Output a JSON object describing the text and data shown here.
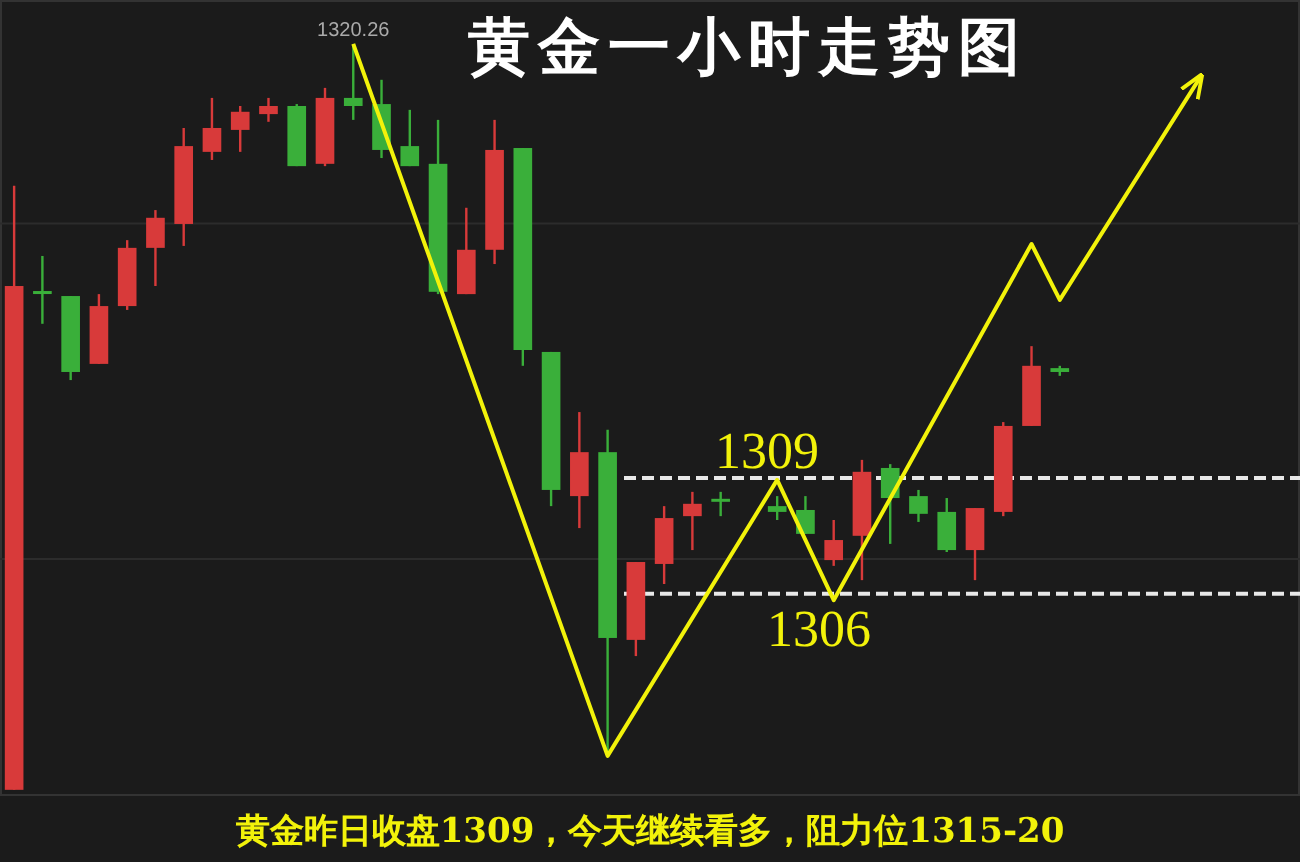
{
  "chart_data": {
    "type": "candlestick",
    "title": "黄金一小时走势图",
    "categories": [
      null,
      null,
      null,
      null,
      null,
      null,
      null,
      null,
      null,
      null,
      null,
      null,
      null,
      null,
      null,
      null,
      null,
      null,
      null,
      null,
      null,
      null,
      null,
      null,
      null,
      null,
      null,
      null,
      null,
      null,
      null,
      null,
      null,
      null,
      null,
      null,
      null,
      null,
      null,
      null,
      null,
      null,
      null,
      null,
      null,
      null
    ],
    "ohlc": [
      [
        1300.91,
        1316.58,
        1300.91,
        1313.98
      ],
      [
        1313.85,
        1314.76,
        1313.0,
        1313.8
      ],
      [
        1313.72,
        1313.72,
        1311.54,
        1311.75
      ],
      [
        1311.96,
        1313.77,
        1311.96,
        1313.46
      ],
      [
        1313.46,
        1315.17,
        1313.36,
        1314.97
      ],
      [
        1314.97,
        1315.95,
        1313.98,
        1315.75
      ],
      [
        1315.59,
        1318.08,
        1315.02,
        1317.61
      ],
      [
        1317.46,
        1318.86,
        1317.25,
        1318.08
      ],
      [
        1318.03,
        1318.65,
        1317.46,
        1318.5
      ],
      [
        1318.44,
        1318.86,
        1318.24,
        1318.65
      ],
      [
        1318.65,
        1318.7,
        1317.09,
        1317.09
      ],
      [
        1317.15,
        1319.12,
        1317.09,
        1318.86
      ],
      [
        1318.86,
        1320.26,
        1318.29,
        1318.65
      ],
      [
        1318.7,
        1319.33,
        1317.3,
        1317.51
      ],
      [
        1317.61,
        1318.55,
        1317.09,
        1317.09
      ],
      [
        1317.15,
        1318.29,
        1313.77,
        1313.83
      ],
      [
        1313.77,
        1316.01,
        1313.77,
        1314.92
      ],
      [
        1314.92,
        1318.29,
        1314.55,
        1317.51
      ],
      [
        1317.56,
        1317.56,
        1311.91,
        1312.32
      ],
      [
        1312.27,
        1312.27,
        1308.27,
        1308.69
      ],
      [
        1308.53,
        1310.71,
        1307.7,
        1309.67
      ],
      [
        1309.67,
        1310.25,
        1301.79,
        1304.85
      ],
      [
        1304.8,
        1306.82,
        1304.38,
        1306.82
      ],
      [
        1306.77,
        1308.27,
        1306.25,
        1307.96
      ],
      [
        1308.01,
        1308.64,
        1307.13,
        1308.33
      ],
      [
        1308.46,
        1308.64,
        1308.01,
        1308.4
      ],
      null,
      [
        1308.27,
        1308.53,
        1307.91,
        1308.12
      ],
      [
        1308.17,
        1308.53,
        1307.55,
        1307.55
      ],
      [
        1306.87,
        1307.91,
        1306.72,
        1307.39
      ],
      [
        1307.5,
        1309.47,
        1306.35,
        1309.16
      ],
      [
        1309.26,
        1309.36,
        1307.29,
        1308.48
      ],
      [
        1308.53,
        1308.69,
        1307.86,
        1308.07
      ],
      [
        1308.12,
        1308.48,
        1307.08,
        1307.13
      ],
      [
        1307.13,
        1308.22,
        1306.35,
        1308.22
      ],
      [
        1308.12,
        1310.45,
        1308.01,
        1310.35
      ],
      [
        1310.35,
        1312.42,
        1310.35,
        1311.91
      ],
      [
        1311.85,
        1311.91,
        1311.65,
        1311.75
      ],
      null,
      null,
      null,
      null,
      null,
      null,
      null,
      null
    ],
    "series": [
      {
        "type": "line",
        "color": "#f2f20a",
        "values": [
          null,
          null,
          null,
          null,
          null,
          null,
          null,
          null,
          null,
          null,
          null,
          null,
          1320.26,
          null,
          null,
          null,
          null,
          null,
          null,
          null,
          null,
          1301.79,
          null,
          null,
          null,
          null,
          null,
          1308.95,
          null,
          1305.83,
          null,
          null,
          null,
          null,
          null,
          null,
          1315.07,
          1313.62,
          null,
          null,
          null,
          null,
          1319.43,
          null,
          null,
          null
        ]
      }
    ],
    "ylim": [
      1300.75,
      1321.4
    ],
    "yticks": [
      {
        "value": 1315.6,
        "label": null
      },
      {
        "value": 1306.9,
        "label": null
      }
    ],
    "grid": "y",
    "ref_lines": [
      {
        "axis": "y",
        "value": 1309,
        "label": "1309",
        "color": "#e8e8e8",
        "line_style": "dashed"
      },
      {
        "axis": "y",
        "value": 1306,
        "label": "1306",
        "color": "#e8e8e8",
        "line_style": "dashed"
      }
    ],
    "annotations": [
      {
        "text": "1320.26",
        "y": 1320.26
      },
      "黄金昨日收盘1309，今天继续看多，阻力位1315-20"
    ]
  }
}
